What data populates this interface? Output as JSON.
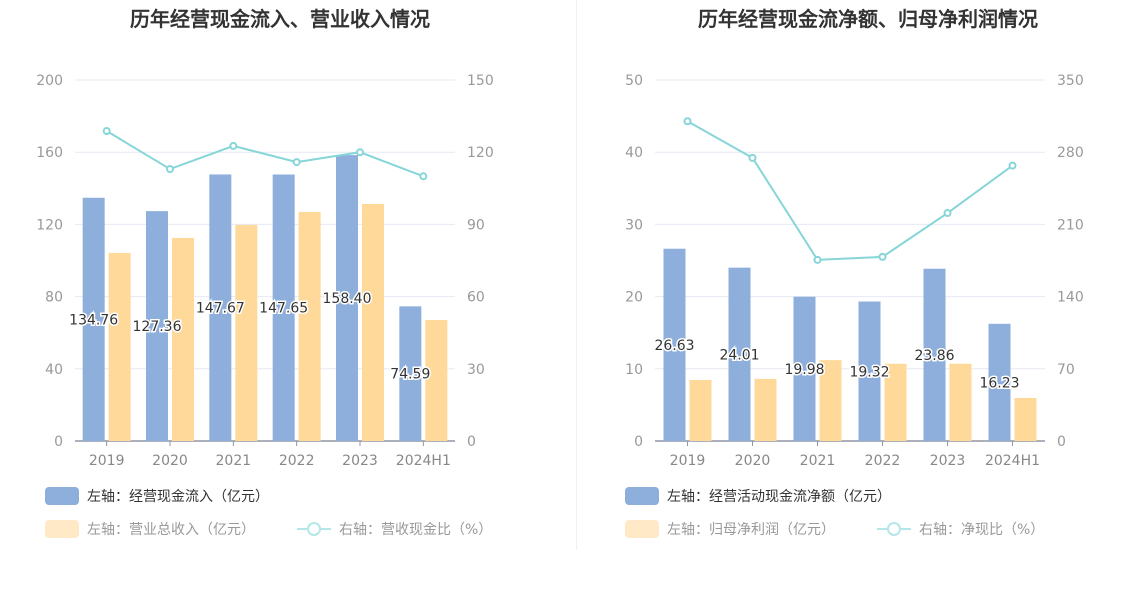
{
  "colors": {
    "bar1": "#8eaedb",
    "bar2": "#ffd99a",
    "line": "#86d5d8"
  },
  "chart_data": [
    {
      "type": "bar",
      "title": "历年经营现金流入、营业收入情况",
      "categories": [
        "2019",
        "2020",
        "2021",
        "2022",
        "2023",
        "2024H1"
      ],
      "ylim_left": [
        0,
        200
      ],
      "yticks_left": [
        "0",
        "40",
        "80",
        "120",
        "160",
        "200"
      ],
      "ylim_right": [
        0,
        150
      ],
      "yticks_right": [
        "0",
        "30",
        "60",
        "90",
        "120",
        "150"
      ],
      "grid": true,
      "legend": "bottom",
      "series": [
        {
          "name": "左轴：经营现金流入（亿元）",
          "axis": "left",
          "kind": "bar",
          "values": [
            134.76,
            127.36,
            147.67,
            147.65,
            158.4,
            74.59
          ],
          "labels": [
            "134.76",
            "127.36",
            "147.67",
            "147.65",
            "158.40",
            "74.59"
          ]
        },
        {
          "name": "左轴：营业总收入（亿元）",
          "axis": "left",
          "kind": "bar",
          "values": [
            104.2,
            112.5,
            119.7,
            126.9,
            131.3,
            67.0
          ]
        },
        {
          "name": "右轴：营收现金比（%）",
          "axis": "right",
          "kind": "line",
          "values": [
            128.8,
            113.0,
            122.6,
            115.9,
            120.0,
            110.0
          ]
        }
      ]
    },
    {
      "type": "bar",
      "title": "历年经营现金流净额、归母净利润情况",
      "categories": [
        "2019",
        "2020",
        "2021",
        "2022",
        "2023",
        "2024H1"
      ],
      "ylim_left": [
        0,
        50
      ],
      "yticks_left": [
        "0",
        "10",
        "20",
        "30",
        "40",
        "50"
      ],
      "ylim_right": [
        0,
        350
      ],
      "yticks_right": [
        "0",
        "70",
        "140",
        "210",
        "280",
        "350"
      ],
      "grid": true,
      "legend": "bottom",
      "series": [
        {
          "name": "左轴：经营活动现金流净额（亿元）",
          "axis": "left",
          "kind": "bar",
          "values": [
            26.63,
            24.01,
            19.98,
            19.32,
            23.86,
            16.23
          ],
          "labels": [
            "26.63",
            "24.01",
            "19.98",
            "19.32",
            "23.86",
            "16.23"
          ]
        },
        {
          "name": "左轴：归母净利润（亿元）",
          "axis": "left",
          "kind": "bar",
          "values": [
            8.45,
            8.6,
            11.2,
            10.7,
            10.7,
            5.96
          ]
        },
        {
          "name": "右轴：净现比（%）",
          "axis": "right",
          "kind": "line",
          "values": [
            310,
            274.5,
            175.6,
            178.5,
            221,
            267
          ]
        }
      ]
    }
  ]
}
